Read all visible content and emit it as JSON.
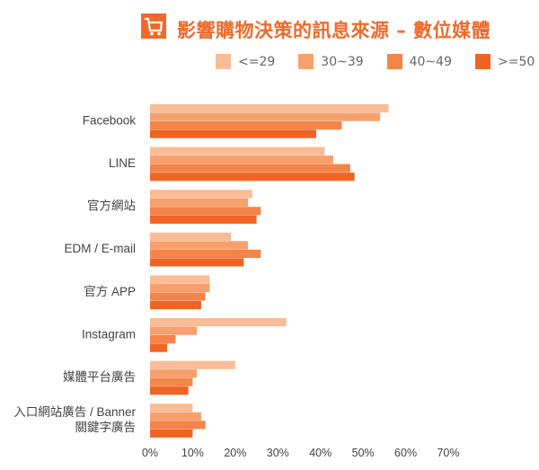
{
  "title": "影響購物決策的訊息來源 – 數位媒體",
  "chart_data": {
    "type": "bar",
    "orientation": "horizontal",
    "title": "影響購物決策的訊息來源 – 數位媒體",
    "categories": [
      "Facebook",
      "LINE",
      "官方網站",
      "EDM / E-mail",
      "官方 APP",
      "Instagram",
      "媒體平台廣告",
      "入口網站廣告 / Banner\n關鍵字廣告"
    ],
    "category_lines": [
      [
        "Facebook"
      ],
      [
        "LINE"
      ],
      [
        "官方網站"
      ],
      [
        "EDM / E-mail"
      ],
      [
        "官方 APP"
      ],
      [
        "Instagram"
      ],
      [
        "媒體平台廣告"
      ],
      [
        "入口網站廣告 / Banner",
        "關鍵字廣告"
      ]
    ],
    "series": [
      {
        "name": "<=29",
        "color": "#F9BC96",
        "values": [
          56,
          41,
          24,
          19,
          14,
          32,
          20,
          10
        ]
      },
      {
        "name": "30~39",
        "color": "#F8A06D",
        "values": [
          54,
          43,
          23,
          23,
          14,
          11,
          11,
          12
        ]
      },
      {
        "name": "40~49",
        "color": "#F3844A",
        "values": [
          45,
          47,
          26,
          26,
          13,
          6,
          10,
          13
        ]
      },
      {
        "name": ">=50",
        "color": "#EF6424",
        "values": [
          39,
          48,
          25,
          22,
          12,
          4,
          9,
          10
        ]
      }
    ],
    "xlim": [
      0,
      70
    ],
    "xticks": [
      "0%",
      "10%",
      "20%",
      "30%",
      "40%",
      "50%",
      "60%",
      "70%"
    ],
    "xlabel": "",
    "ylabel": "",
    "grid": false,
    "legend_position": "top-right"
  }
}
